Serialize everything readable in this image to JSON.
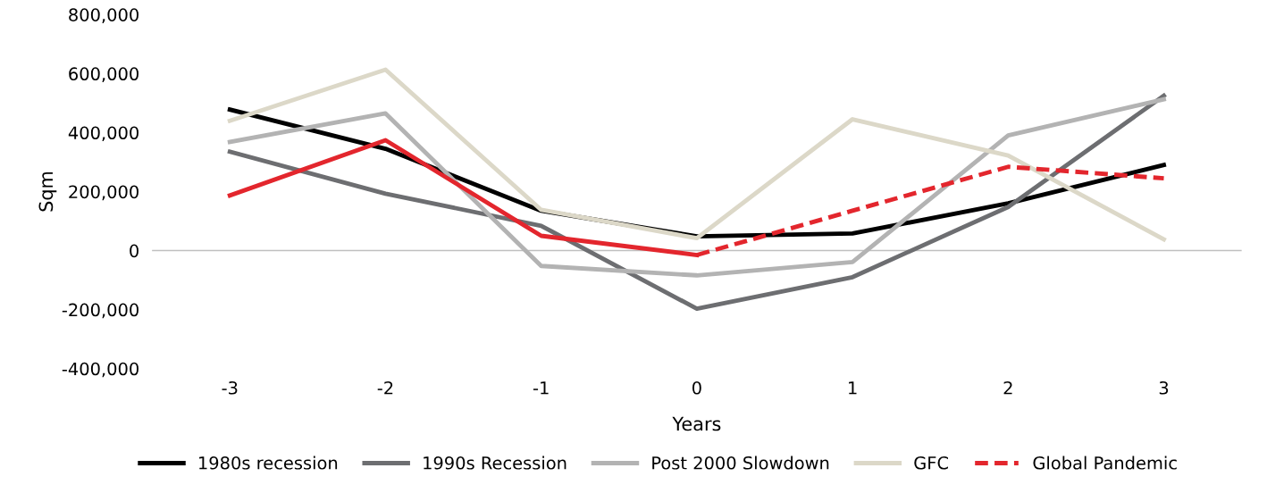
{
  "chart_data": {
    "type": "line",
    "xlabel": "Years",
    "ylabel": "Sqm",
    "categories": [
      "-3",
      "-2",
      "-1",
      "0",
      "1",
      "2",
      "3"
    ],
    "series": [
      {
        "name": "1980s recession",
        "color": "#000000",
        "values": [
          478000,
          345000,
          135000,
          48000,
          58000,
          160000,
          290000
        ]
      },
      {
        "name": "1990s Recession",
        "color": "#6d6e71",
        "values": [
          335000,
          193000,
          84000,
          -197000,
          -90000,
          148000,
          525000
        ]
      },
      {
        "name": "Post 2000 Slowdown",
        "color": "#b3b3b3",
        "values": [
          368000,
          465000,
          -52000,
          -84000,
          -39000,
          390000,
          513000
        ]
      },
      {
        "name": "GFC",
        "color": "#dcd8c8",
        "values": [
          440000,
          613000,
          138000,
          42000,
          445000,
          322000,
          38000
        ]
      },
      {
        "color": "#e3262d",
        "line_style": "solid",
        "values": [
          187000,
          374000,
          50000,
          -15000,
          null,
          null,
          null
        ]
      },
      {
        "name": "Global Pandemic",
        "color": "#e3262d",
        "line_style": "dashed",
        "values": [
          null,
          null,
          null,
          -15000,
          135000,
          284000,
          245000
        ]
      }
    ],
    "ylim": [
      -400000,
      800000
    ],
    "yticks": [
      {
        "value": -400000,
        "label": "-400,000"
      },
      {
        "value": -200000,
        "label": "-200,000"
      },
      {
        "value": 0,
        "label": "0"
      },
      {
        "value": 200000,
        "label": "200,000"
      },
      {
        "value": 400000,
        "label": "400,000"
      },
      {
        "value": 600000,
        "label": "600,000"
      },
      {
        "value": 800000,
        "label": "800,000"
      }
    ],
    "ref_lines": [
      {
        "axis": "y",
        "value": 0,
        "color": "#bfbfbf"
      }
    ],
    "grid": false,
    "legend": "bottom",
    "marker": "none",
    "line_style": "solid"
  }
}
